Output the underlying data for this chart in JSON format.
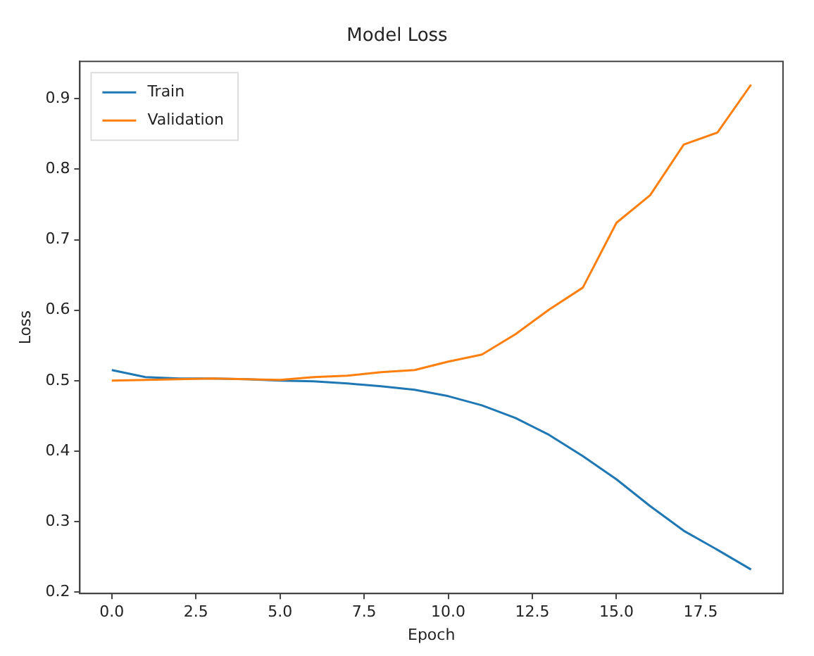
{
  "chart_data": {
    "type": "line",
    "title": "Model Loss",
    "xlabel": "Epoch",
    "ylabel": "Loss",
    "x": [
      0,
      1,
      2,
      3,
      4,
      5,
      6,
      7,
      8,
      9,
      10,
      11,
      12,
      13,
      14,
      15,
      16,
      17,
      18,
      19
    ],
    "series": [
      {
        "name": "Train",
        "color": "#1f77b4",
        "values": [
          0.515,
          0.505,
          0.503,
          0.503,
          0.502,
          0.5,
          0.499,
          0.496,
          0.492,
          0.487,
          0.478,
          0.465,
          0.447,
          0.423,
          0.393,
          0.36,
          0.322,
          0.287,
          0.26,
          0.232
        ]
      },
      {
        "name": "Validation",
        "color": "#ff7f0e",
        "values": [
          0.5,
          0.501,
          0.502,
          0.503,
          0.502,
          0.501,
          0.505,
          0.507,
          0.512,
          0.515,
          0.527,
          0.537,
          0.566,
          0.601,
          0.632,
          0.724,
          0.763,
          0.835,
          0.852,
          0.92
        ]
      }
    ],
    "xlim": [
      -0.95,
      19.95
    ],
    "ylim": [
      0.198,
      0.953
    ],
    "xticks": [
      {
        "value": 0,
        "label": "0.0"
      },
      {
        "value": 2.5,
        "label": "2.5"
      },
      {
        "value": 5,
        "label": "5.0"
      },
      {
        "value": 7.5,
        "label": "7.5"
      },
      {
        "value": 10,
        "label": "10.0"
      },
      {
        "value": 12.5,
        "label": "12.5"
      },
      {
        "value": 15,
        "label": "15.0"
      },
      {
        "value": 17.5,
        "label": "17.5"
      }
    ],
    "yticks": [
      0.2,
      0.3,
      0.4,
      0.5,
      0.6,
      0.7,
      0.8,
      0.9
    ],
    "legend": "top left",
    "grid": false,
    "marker": "none",
    "line_style": "solid"
  }
}
